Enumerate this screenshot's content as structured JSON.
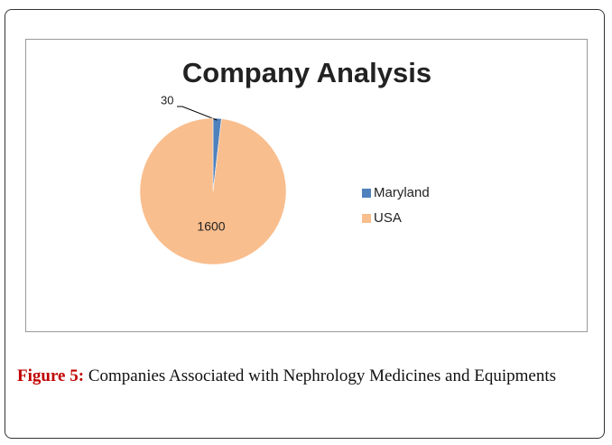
{
  "chart_data": {
    "type": "pie",
    "title": "Company Analysis",
    "categories": [
      "Maryland",
      "USA"
    ],
    "values": [
      30,
      1600
    ],
    "colors": [
      "#4f81bd",
      "#f9be8e"
    ],
    "legend": "right"
  },
  "caption": {
    "label": "Figure 5:",
    "text": "Companies Associated with Nephrology Medicines and Equipments"
  }
}
